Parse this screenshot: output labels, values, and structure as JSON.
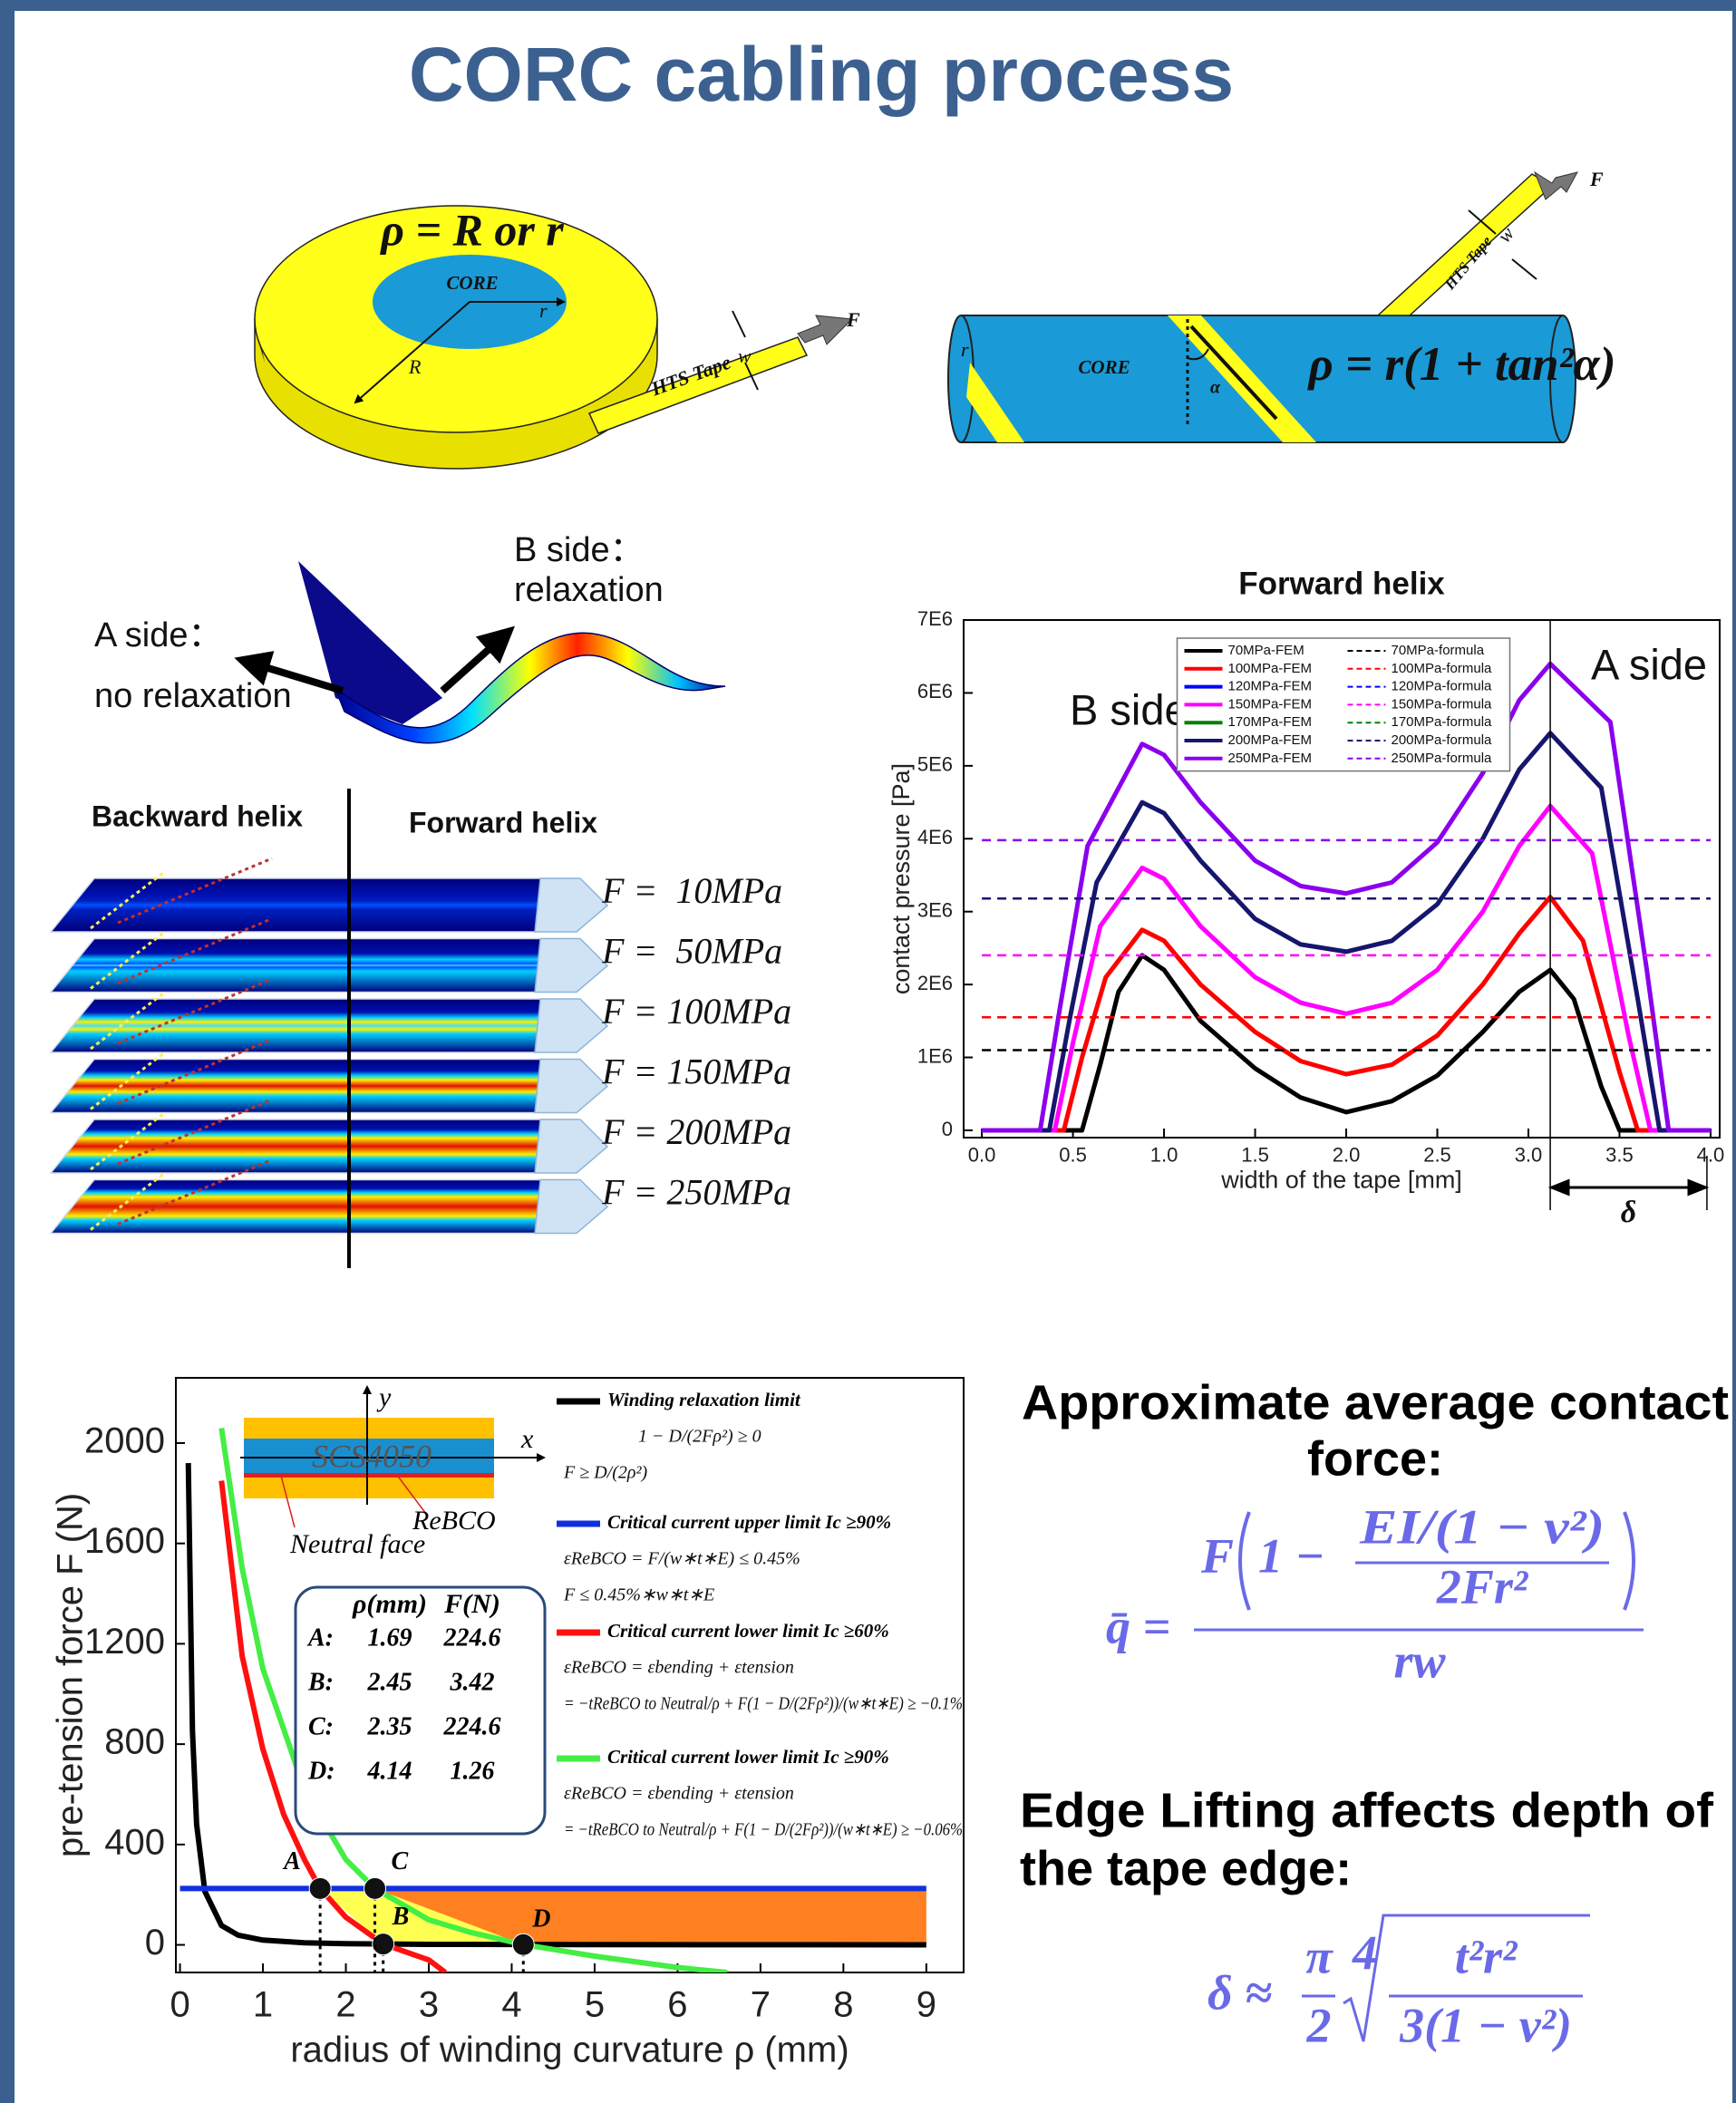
{
  "title": "CORC cabling process",
  "disk_diagram": {
    "formula": "ρ = R or r",
    "core": "CORE",
    "r": "r",
    "R": "R",
    "tape": "HTS Tape",
    "w": "w",
    "F": "F"
  },
  "cylinder_diagram": {
    "F": "F",
    "w": "w",
    "tape": "HTS Tape",
    "r": "r",
    "core": "CORE",
    "alpha": "α",
    "formula": "ρ = r(1 + tan²α)"
  },
  "helix_diagram": {
    "b_side": "B side：",
    "b_note": "relaxation",
    "a_side": "A side：",
    "a_note": "no relaxation"
  },
  "layers_diagram": {
    "backward": "Backward helix",
    "forward": "Forward helix",
    "labels": [
      "F =  10MPa",
      "F =  50MPa",
      "F = 100MPa",
      "F = 150MPa",
      "F = 200MPa",
      "F = 250MPa"
    ]
  },
  "chart_data": [
    {
      "type": "line",
      "title": "Forward helix",
      "x_label": "width of the tape [mm]",
      "y_label": "contact pressure [Pa]",
      "xlim": [
        -0.1,
        4.05
      ],
      "ylim": [
        -100000,
        7000000
      ],
      "xticks": [
        {
          "value": 0,
          "label": "0.0"
        },
        0.5,
        {
          "value": 1,
          "label": "1.0"
        },
        1.5,
        {
          "value": 2,
          "label": "2.0"
        },
        2.5,
        {
          "value": 3,
          "label": "3.0"
        },
        3.5,
        {
          "value": 4,
          "label": "4.0"
        }
      ],
      "yticks": [
        0,
        {
          "value": 1000000,
          "label": "1E6"
        },
        {
          "value": 2000000,
          "label": "2E6"
        },
        {
          "value": 3000000,
          "label": "3E6"
        },
        {
          "value": 4000000,
          "label": "4E6"
        },
        {
          "value": 5000000,
          "label": "5E6"
        },
        {
          "value": 6000000,
          "label": "6E6"
        },
        {
          "value": 7000000,
          "label": "7E6"
        }
      ],
      "grid": false,
      "legend": "upper center",
      "annotations": {
        "b_side": "B side",
        "a_side": "A side",
        "delta": "δ"
      },
      "delta_span": [
        3.12,
        3.98
      ],
      "series": [
        {
          "name": "70MPa-FEM",
          "color": "#000000",
          "style": "solid",
          "x": [
            0,
            0.55,
            0.65,
            0.75,
            0.88,
            1.0,
            1.2,
            1.5,
            1.75,
            2.0,
            2.25,
            2.5,
            2.75,
            2.95,
            3.12,
            3.25,
            3.4,
            3.5,
            4.0
          ],
          "values": [
            0,
            0,
            900000,
            1900000,
            2400000,
            2200000,
            1500000,
            850000,
            450000,
            250000,
            400000,
            750000,
            1350000,
            1900000,
            2200000,
            1800000,
            600000,
            0,
            0
          ]
        },
        {
          "name": "100MPa-FEM",
          "color": "#ff0000",
          "style": "solid",
          "x": [
            0,
            0.45,
            0.55,
            0.68,
            0.88,
            1.0,
            1.2,
            1.5,
            1.75,
            2.0,
            2.25,
            2.5,
            2.75,
            2.95,
            3.12,
            3.3,
            3.5,
            3.6,
            4.0
          ],
          "values": [
            0,
            0,
            1000000,
            2100000,
            2750000,
            2600000,
            2000000,
            1350000,
            950000,
            770000,
            900000,
            1300000,
            2000000,
            2700000,
            3200000,
            2600000,
            800000,
            0,
            0
          ]
        },
        {
          "name": "120MPa-FEM",
          "color": "#0000ff",
          "style": "solid",
          "x": [
            0,
            4
          ],
          "values": [
            null,
            null
          ]
        },
        {
          "name": "150MPa-FEM",
          "color": "#ff00ff",
          "style": "solid",
          "x": [
            0,
            0.4,
            0.5,
            0.65,
            0.88,
            1.0,
            1.2,
            1.5,
            1.75,
            2.0,
            2.25,
            2.5,
            2.75,
            2.95,
            3.12,
            3.35,
            3.55,
            3.67,
            4.0
          ],
          "values": [
            0,
            0,
            1200000,
            2800000,
            3600000,
            3450000,
            2800000,
            2100000,
            1750000,
            1600000,
            1750000,
            2200000,
            3000000,
            3900000,
            4450000,
            3800000,
            1300000,
            0,
            0
          ]
        },
        {
          "name": "170MPa-FEM",
          "color": "#008000",
          "style": "solid",
          "x": [
            0,
            4
          ],
          "values": [
            null,
            null
          ]
        },
        {
          "name": "200MPa-FEM",
          "color": "#16166e",
          "style": "solid",
          "x": [
            0,
            0.37,
            0.48,
            0.63,
            0.88,
            1.0,
            1.2,
            1.5,
            1.75,
            2.0,
            2.25,
            2.5,
            2.75,
            2.95,
            3.12,
            3.4,
            3.6,
            3.72,
            4.0
          ],
          "values": [
            0,
            0,
            1500000,
            3400000,
            4500000,
            4350000,
            3700000,
            2900000,
            2550000,
            2450000,
            2600000,
            3100000,
            4000000,
            4950000,
            5450000,
            4700000,
            1800000,
            0,
            0
          ]
        },
        {
          "name": "250MPa-FEM",
          "color": "#8a00ee",
          "style": "solid",
          "x": [
            0,
            0.32,
            0.43,
            0.58,
            0.88,
            1.0,
            1.2,
            1.5,
            1.75,
            2.0,
            2.25,
            2.5,
            2.75,
            2.95,
            3.12,
            3.45,
            3.65,
            3.77,
            4.0
          ],
          "values": [
            0,
            0,
            1700000,
            3900000,
            5300000,
            5150000,
            4500000,
            3700000,
            3350000,
            3250000,
            3400000,
            3950000,
            4900000,
            5900000,
            6400000,
            5600000,
            2200000,
            0,
            0
          ]
        },
        {
          "name": "70MPa-formula",
          "color": "#000000",
          "style": "dashed",
          "x": [
            0,
            4
          ],
          "values": [
            1100000,
            1100000
          ]
        },
        {
          "name": "100MPa-formula",
          "color": "#ff0000",
          "style": "dashed",
          "x": [
            0,
            4
          ],
          "values": [
            1550000,
            1550000
          ]
        },
        {
          "name": "120MPa-formula",
          "color": "#0000ff",
          "style": "dashed",
          "x": [
            0,
            4
          ],
          "values": [
            null,
            null
          ]
        },
        {
          "name": "150MPa-formula",
          "color": "#ff00ff",
          "style": "dashed",
          "x": [
            0,
            4
          ],
          "values": [
            2400000,
            2400000
          ]
        },
        {
          "name": "170MPa-formula",
          "color": "#008000",
          "style": "dashed",
          "x": [
            0,
            4
          ],
          "values": [
            null,
            null
          ]
        },
        {
          "name": "200MPa-formula",
          "color": "#16166e",
          "style": "dashed",
          "x": [
            0,
            4
          ],
          "values": [
            3180000,
            3180000
          ]
        },
        {
          "name": "250MPa-formula",
          "color": "#8a00ee",
          "style": "dashed",
          "x": [
            0,
            4
          ],
          "values": [
            3980000,
            3980000
          ]
        }
      ]
    },
    {
      "type": "line",
      "x_label": "radius of winding curvature ρ (mm)",
      "y_label": "pre-tension force F (N)",
      "xlim": [
        -0.05,
        9.45
      ],
      "ylim": [
        -110,
        2260
      ],
      "xticks": [
        0,
        1,
        2,
        3,
        4,
        5,
        6,
        7,
        8,
        9
      ],
      "yticks": [
        0,
        400,
        800,
        1200,
        1600,
        2000
      ],
      "grid": false,
      "legend": "upper right",
      "series": [
        {
          "name": "Winding relaxation limit",
          "color": "#000000",
          "style": "solid",
          "x": [
            0.1,
            0.15,
            0.2,
            0.3,
            0.5,
            0.7,
            1,
            1.5,
            2,
            3,
            5,
            9
          ],
          "values": [
            1920,
            853,
            480,
            213,
            77,
            39,
            19,
            8.5,
            4.8,
            2.1,
            0.8,
            0.2
          ],
          "formulas": [
            "1 − D/(2Fρ²) ≥ 0",
            "F ≥ D/(2ρ²)"
          ]
        },
        {
          "name": "Critical current upper limit Ic ≥90%",
          "color": "#1030e0",
          "style": "solid",
          "x": [
            0,
            9
          ],
          "values": [
            224.6,
            224.6
          ],
          "formulas": [
            "εReBCO = F/(w∗t∗E) ≤ 0.45%",
            "F ≤ 0.45%∗w∗t∗E"
          ]
        },
        {
          "name": "Critical current lower limit Ic ≥60%",
          "color": "#ff1010",
          "style": "solid",
          "x": [
            0.5,
            0.75,
            1,
            1.25,
            1.5,
            1.69,
            2,
            2.45,
            3,
            3.2
          ],
          "values": [
            1850,
            1150,
            780,
            520,
            340,
            224.6,
            110,
            3.42,
            -60,
            -110
          ],
          "formulas": [
            "εReBCO = εbending + εtension",
            "= −tReBCO to Neutral/ρ + F(1 − D/(2Fρ²))/(w∗t∗E) ≥ −0.1%"
          ]
        },
        {
          "name": "Critical current lower limit Ic ≥90%",
          "color": "#44ee44",
          "style": "solid",
          "x": [
            0.5,
            0.75,
            1,
            1.5,
            2,
            2.35,
            3,
            3.5,
            4.14,
            5,
            6,
            6.6
          ],
          "values": [
            2060,
            1500,
            1100,
            620,
            340,
            224.6,
            100,
            50,
            1.26,
            -45,
            -90,
            -110
          ],
          "formulas": [
            "εReBCO = εbending + εtension",
            "= −tReBCO to Neutral/ρ + F(1 − D/(2Fρ²))/(w∗t∗E) ≥ −0.06%"
          ]
        }
      ],
      "points": [
        {
          "label": "A",
          "x": 1.69,
          "y": 224.6
        },
        {
          "label": "B",
          "x": 2.45,
          "y": 3.42
        },
        {
          "label": "C",
          "x": 2.35,
          "y": 224.6
        },
        {
          "label": "D",
          "x": 4.14,
          "y": 1.26
        }
      ],
      "table_header": [
        "ρ(mm)",
        "F(N)"
      ],
      "table_labels": [
        "A:",
        "B:",
        "C:",
        "D:"
      ],
      "inset": {
        "material": "SCS4050",
        "x_axis": "x",
        "y_axis": "y",
        "rebco": "ReBCO",
        "neutral": "Neutral face"
      }
    }
  ],
  "contact_force": {
    "heading": [
      "Approximate average contact",
      "force:"
    ],
    "lhs": "q̄ =",
    "outer": "F",
    "lead": "1 −",
    "inner_numerator": "EI/(1 − ν²)",
    "inner_denominator": "2Fr²",
    "denominator": "rw"
  },
  "edge_lifting": {
    "heading": [
      "Edge Lifting affects depth of",
      "the tape edge:"
    ],
    "lhs": "δ ≈",
    "pi": "π",
    "two": "2",
    "root_index": "4",
    "numerator": "t²r²",
    "denominator": "3(1 − ν²)"
  }
}
